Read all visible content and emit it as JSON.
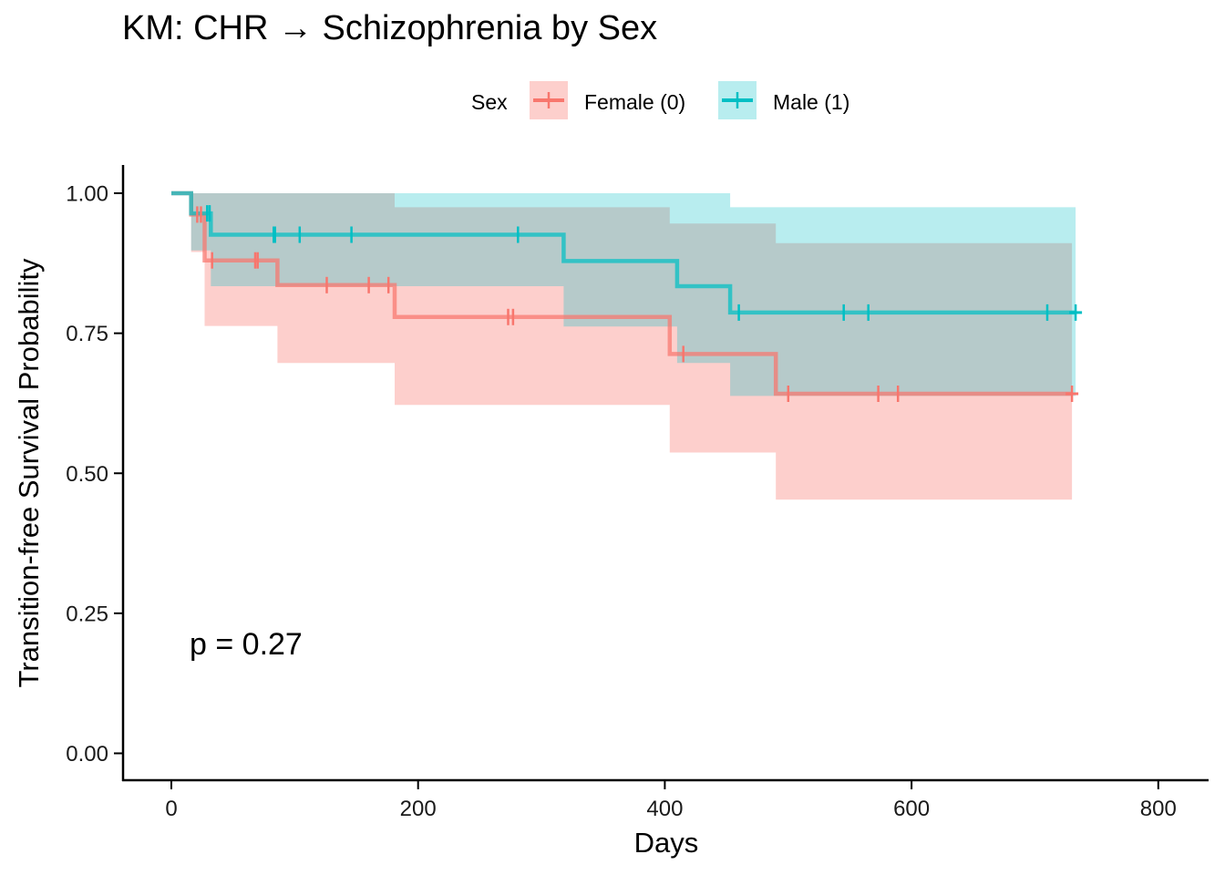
{
  "chart_data": {
    "type": "line",
    "subtype": "kaplan-meier step curve with confidence bands",
    "title": "KM: CHR → Schizophrenia by Sex",
    "xlabel": "Days",
    "ylabel": "Transition-free Survival Probability",
    "xlim": [
      -40,
      820
    ],
    "ylim": [
      -0.05,
      1.05
    ],
    "x_ticks": [
      0,
      200,
      400,
      600,
      800
    ],
    "x_tick_labels": [
      "0",
      "200",
      "400",
      "600",
      "800"
    ],
    "y_ticks": [
      0,
      0.25,
      0.5,
      0.75,
      1.0
    ],
    "y_tick_labels": [
      "0.00",
      "0.25",
      "0.50",
      "0.75",
      "1.00"
    ],
    "grid": false,
    "legend": {
      "title": "Sex",
      "placement": "top"
    },
    "annotation": "p = 0.27",
    "series": [
      {
        "name": "Female (0)",
        "color": "#F8766D",
        "band_color": "#F8766D",
        "steps": [
          {
            "x": 0,
            "y": 1.0
          },
          {
            "x": 16,
            "y": 0.962
          },
          {
            "x": 27,
            "y": 0.88
          },
          {
            "x": 86,
            "y": 0.836
          },
          {
            "x": 181,
            "y": 0.779
          },
          {
            "x": 404,
            "y": 0.713
          },
          {
            "x": 490,
            "y": 0.642
          }
        ],
        "end_x": 730,
        "ci": [
          {
            "x": 0,
            "lo": 1.0,
            "hi": 1.0
          },
          {
            "x": 16,
            "lo": 0.895,
            "hi": 1.0
          },
          {
            "x": 27,
            "lo": 0.763,
            "hi": 1.0
          },
          {
            "x": 86,
            "lo": 0.697,
            "hi": 1.0
          },
          {
            "x": 181,
            "lo": 0.622,
            "hi": 0.975
          },
          {
            "x": 404,
            "lo": 0.537,
            "hi": 0.946
          },
          {
            "x": 490,
            "lo": 0.453,
            "hi": 0.911
          }
        ],
        "censored": [
          21,
          24,
          33,
          68,
          70,
          126,
          160,
          176,
          273,
          277,
          415,
          500,
          573,
          589,
          730
        ]
      },
      {
        "name": "Male (1)",
        "color": "#00BFC4",
        "band_color": "#00BFC4",
        "steps": [
          {
            "x": 0,
            "y": 1.0
          },
          {
            "x": 16,
            "y": 0.964
          },
          {
            "x": 32,
            "y": 0.926
          },
          {
            "x": 318,
            "y": 0.879
          },
          {
            "x": 410,
            "y": 0.834
          },
          {
            "x": 453,
            "y": 0.787
          }
        ],
        "end_x": 733,
        "ci": [
          {
            "x": 0,
            "lo": 1.0,
            "hi": 1.0
          },
          {
            "x": 16,
            "lo": 0.898,
            "hi": 1.0
          },
          {
            "x": 32,
            "lo": 0.834,
            "hi": 1.0
          },
          {
            "x": 318,
            "lo": 0.762,
            "hi": 1.0
          },
          {
            "x": 410,
            "lo": 0.697,
            "hi": 1.0
          },
          {
            "x": 453,
            "lo": 0.638,
            "hi": 0.975
          }
        ],
        "censored": [
          29,
          31,
          83,
          84,
          104,
          146,
          281,
          460,
          545,
          565,
          710,
          733
        ]
      }
    ]
  }
}
